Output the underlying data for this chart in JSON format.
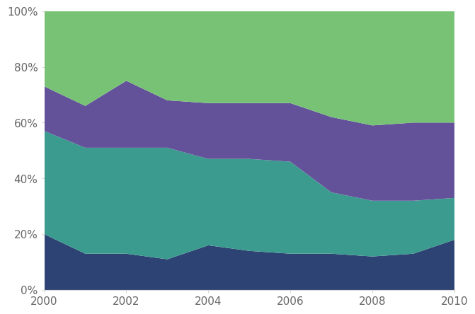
{
  "x": [
    2000,
    2001,
    2002,
    2003,
    2004,
    2005,
    2006,
    2007,
    2008,
    2009,
    2010
  ],
  "series1": [
    20,
    13,
    13,
    11,
    16,
    14,
    13,
    13,
    12,
    13,
    18
  ],
  "series2": [
    37,
    38,
    38,
    40,
    31,
    33,
    33,
    22,
    20,
    19,
    15
  ],
  "series3": [
    16,
    15,
    24,
    17,
    20,
    20,
    21,
    27,
    27,
    28,
    27
  ],
  "series4": [
    27,
    34,
    25,
    32,
    33,
    33,
    33,
    38,
    41,
    40,
    40
  ],
  "colors": [
    "#2d4373",
    "#3b9b8e",
    "#63519a",
    "#77c275"
  ],
  "background_color": "#ffffff",
  "grid_color": "#d8d8d8",
  "ytick_labels": [
    "0%",
    "20%",
    "40%",
    "60%",
    "80%",
    "100%"
  ],
  "ytick_values": [
    0,
    20,
    40,
    60,
    80,
    100
  ],
  "xtick_values": [
    2000,
    2002,
    2004,
    2006,
    2008,
    2010
  ],
  "xtick_labels": [
    "2000",
    "2002",
    "2004",
    "2006",
    "2008",
    "2010"
  ],
  "xlim": [
    2000,
    2010
  ],
  "ylim": [
    0,
    100
  ],
  "tick_fontsize": 11,
  "tick_color": "#666666"
}
